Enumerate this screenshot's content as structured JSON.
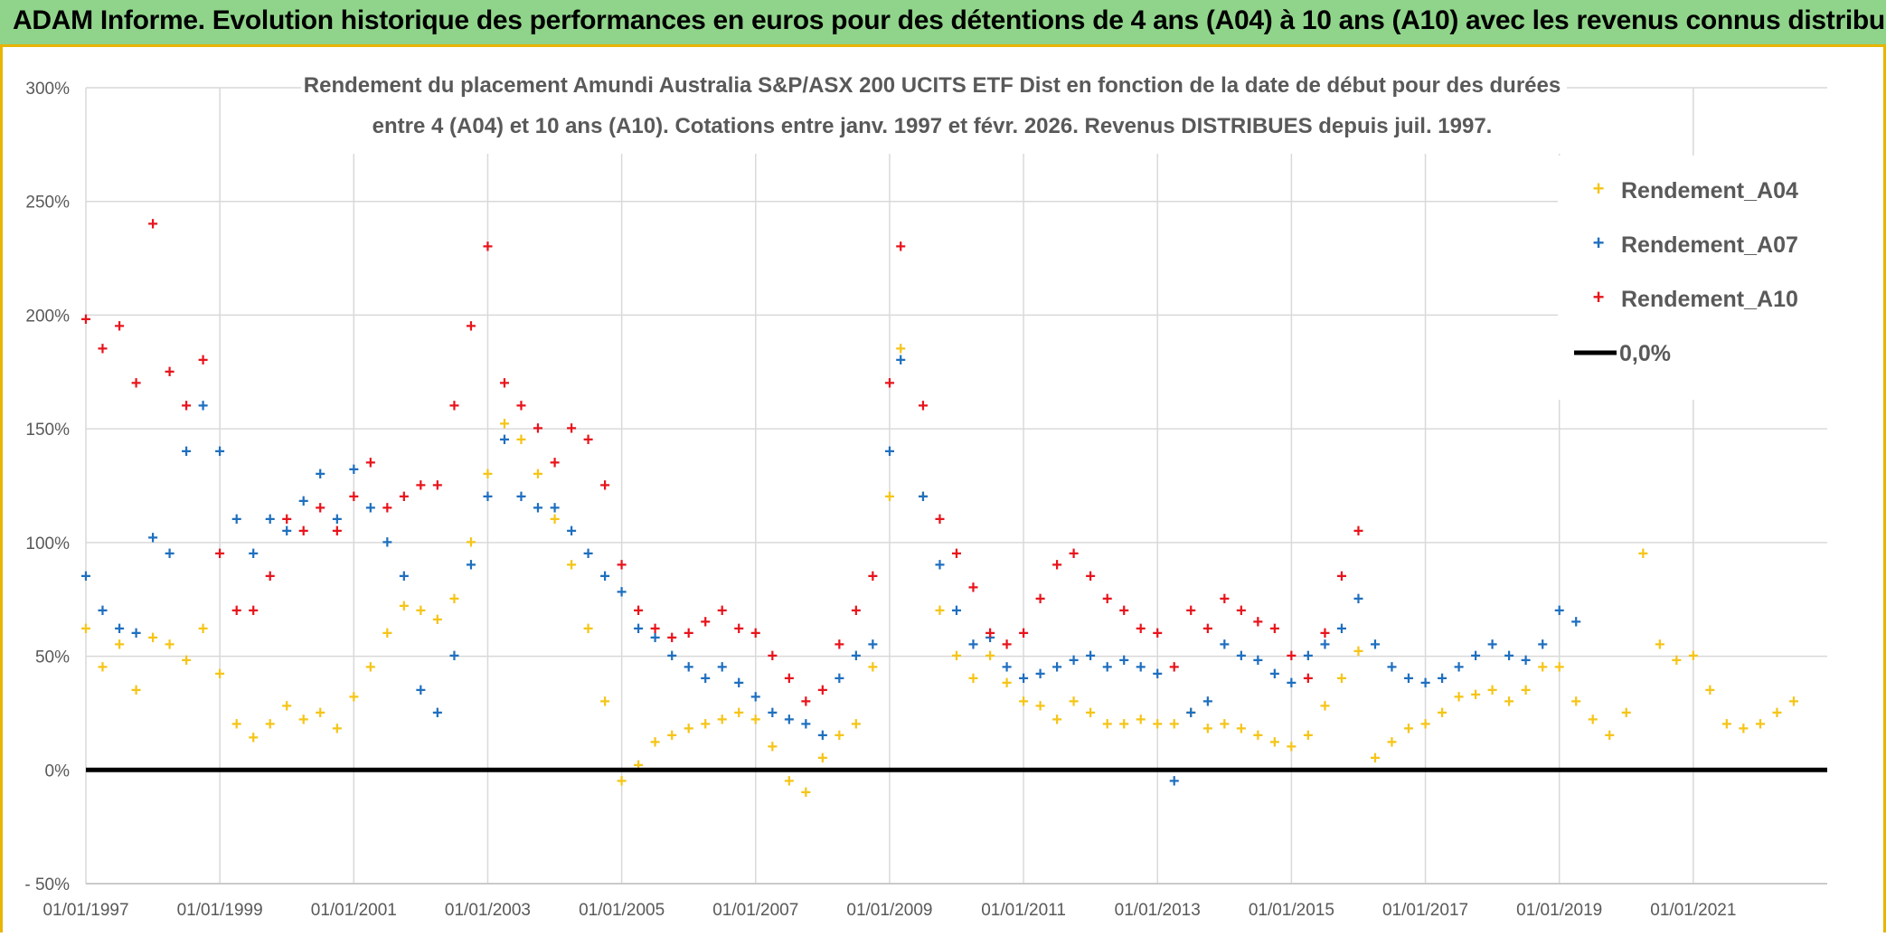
{
  "banner": {
    "text": "ADAM Informe. Evolution historique des performances en euros pour des détentions de 4 ans (A04) à 10 ans (A10) avec les revenus connus distribués"
  },
  "colors": {
    "banner_bg": "#8fd48a",
    "accent_border": "#e8b400",
    "A04": "#f5c518",
    "A07": "#1f6fbf",
    "A10": "#e8141c",
    "zero": "#000000"
  },
  "chart_data": {
    "type": "scatter",
    "title_line1": "Rendement du placement Amundi Australia S&P/ASX 200 UCITS ETF Dist en fonction de la date de début pour des durées",
    "title_line2": "entre 4 (A04) et 10 ans (A10). Cotations entre janv. 1997 et févr. 2026. Revenus DISTRIBUES depuis juil. 1997.",
    "xlim": [
      "1997-01-01",
      "2023-01-01"
    ],
    "ylim": [
      -0.5,
      3.0
    ],
    "grid": true,
    "legend_position": "top-right",
    "x_ticks": [
      "01/01/1997",
      "01/01/1999",
      "01/01/2001",
      "01/01/2003",
      "01/01/2005",
      "01/01/2007",
      "01/01/2009",
      "01/01/2011",
      "01/01/2013",
      "01/01/2015",
      "01/01/2017",
      "01/01/2019",
      "01/01/2021"
    ],
    "y_ticks": [
      {
        "value": -0.5,
        "label": "- 50%"
      },
      {
        "value": 0,
        "label": "0%"
      },
      {
        "value": 0.5,
        "label": "50%"
      },
      {
        "value": 1.0,
        "label": "100%"
      },
      {
        "value": 1.5,
        "label": "150%"
      },
      {
        "value": 2.0,
        "label": "200%"
      },
      {
        "value": 2.5,
        "label": "250%"
      },
      {
        "value": 3.0,
        "label": "300%"
      }
    ],
    "series": [
      {
        "name": "Rendement_A04",
        "marker": "+",
        "points": [
          [
            "1997-01",
            0.62
          ],
          [
            "1997-04",
            0.45
          ],
          [
            "1997-07",
            0.55
          ],
          [
            "1997-10",
            0.35
          ],
          [
            "1998-01",
            0.58
          ],
          [
            "1998-04",
            0.55
          ],
          [
            "1998-07",
            0.48
          ],
          [
            "1998-10",
            0.62
          ],
          [
            "1999-01",
            0.42
          ],
          [
            "1999-04",
            0.2
          ],
          [
            "1999-07",
            0.14
          ],
          [
            "1999-10",
            0.2
          ],
          [
            "2000-01",
            0.28
          ],
          [
            "2000-04",
            0.22
          ],
          [
            "2000-07",
            0.25
          ],
          [
            "2000-10",
            0.18
          ],
          [
            "2001-01",
            0.32
          ],
          [
            "2001-04",
            0.45
          ],
          [
            "2001-07",
            0.6
          ],
          [
            "2001-10",
            0.72
          ],
          [
            "2002-01",
            0.7
          ],
          [
            "2002-04",
            0.66
          ],
          [
            "2002-07",
            0.75
          ],
          [
            "2002-10",
            1.0
          ],
          [
            "2003-01",
            1.3
          ],
          [
            "2003-04",
            1.52
          ],
          [
            "2003-07",
            1.45
          ],
          [
            "2003-10",
            1.3
          ],
          [
            "2004-01",
            1.1
          ],
          [
            "2004-04",
            0.9
          ],
          [
            "2004-07",
            0.62
          ],
          [
            "2004-10",
            0.3
          ],
          [
            "2005-01",
            -0.05
          ],
          [
            "2005-04",
            0.02
          ],
          [
            "2005-07",
            0.12
          ],
          [
            "2005-10",
            0.15
          ],
          [
            "2006-01",
            0.18
          ],
          [
            "2006-04",
            0.2
          ],
          [
            "2006-07",
            0.22
          ],
          [
            "2006-10",
            0.25
          ],
          [
            "2007-01",
            0.22
          ],
          [
            "2007-04",
            0.1
          ],
          [
            "2007-07",
            -0.05
          ],
          [
            "2007-10",
            -0.1
          ],
          [
            "2008-01",
            0.05
          ],
          [
            "2008-04",
            0.15
          ],
          [
            "2008-07",
            0.2
          ],
          [
            "2008-10",
            0.45
          ],
          [
            "2009-01",
            1.2
          ],
          [
            "2009-03",
            1.85
          ],
          [
            "2009-07",
            1.2
          ],
          [
            "2009-10",
            0.7
          ],
          [
            "2010-01",
            0.5
          ],
          [
            "2010-04",
            0.4
          ],
          [
            "2010-07",
            0.5
          ],
          [
            "2010-10",
            0.38
          ],
          [
            "2011-01",
            0.3
          ],
          [
            "2011-04",
            0.28
          ],
          [
            "2011-07",
            0.22
          ],
          [
            "2011-10",
            0.3
          ],
          [
            "2012-01",
            0.25
          ],
          [
            "2012-04",
            0.2
          ],
          [
            "2012-07",
            0.2
          ],
          [
            "2012-10",
            0.22
          ],
          [
            "2013-01",
            0.2
          ],
          [
            "2013-04",
            0.2
          ],
          [
            "2013-07",
            0.25
          ],
          [
            "2013-10",
            0.18
          ],
          [
            "2014-01",
            0.2
          ],
          [
            "2014-04",
            0.18
          ],
          [
            "2014-07",
            0.15
          ],
          [
            "2014-10",
            0.12
          ],
          [
            "2015-01",
            0.1
          ],
          [
            "2015-04",
            0.15
          ],
          [
            "2015-07",
            0.28
          ],
          [
            "2015-10",
            0.4
          ],
          [
            "2016-01",
            0.52
          ],
          [
            "2016-04",
            0.05
          ],
          [
            "2016-07",
            0.12
          ],
          [
            "2016-10",
            0.18
          ],
          [
            "2017-01",
            0.2
          ],
          [
            "2017-04",
            0.25
          ],
          [
            "2017-07",
            0.32
          ],
          [
            "2017-10",
            0.33
          ],
          [
            "2018-01",
            0.35
          ],
          [
            "2018-04",
            0.3
          ],
          [
            "2018-07",
            0.35
          ],
          [
            "2018-10",
            0.45
          ],
          [
            "2019-01",
            0.45
          ],
          [
            "2019-04",
            0.3
          ],
          [
            "2019-07",
            0.22
          ],
          [
            "2019-10",
            0.15
          ],
          [
            "2020-01",
            0.25
          ],
          [
            "2020-04",
            0.95
          ],
          [
            "2020-07",
            0.55
          ],
          [
            "2020-10",
            0.48
          ],
          [
            "2021-01",
            0.5
          ],
          [
            "2021-04",
            0.35
          ],
          [
            "2021-07",
            0.2
          ],
          [
            "2021-10",
            0.18
          ],
          [
            "2022-01",
            0.2
          ],
          [
            "2022-04",
            0.25
          ],
          [
            "2022-07",
            0.3
          ]
        ]
      },
      {
        "name": "Rendement_A07",
        "marker": "+",
        "points": [
          [
            "1997-01",
            0.85
          ],
          [
            "1997-04",
            0.7
          ],
          [
            "1997-07",
            0.62
          ],
          [
            "1997-10",
            0.6
          ],
          [
            "1998-01",
            1.02
          ],
          [
            "1998-04",
            0.95
          ],
          [
            "1998-07",
            1.4
          ],
          [
            "1998-10",
            1.6
          ],
          [
            "1999-01",
            1.4
          ],
          [
            "1999-04",
            1.1
          ],
          [
            "1999-07",
            0.95
          ],
          [
            "1999-10",
            1.1
          ],
          [
            "2000-01",
            1.05
          ],
          [
            "2000-04",
            1.18
          ],
          [
            "2000-07",
            1.3
          ],
          [
            "2000-10",
            1.1
          ],
          [
            "2001-01",
            1.32
          ],
          [
            "2001-04",
            1.15
          ],
          [
            "2001-07",
            1.0
          ],
          [
            "2001-10",
            0.85
          ],
          [
            "2002-01",
            0.35
          ],
          [
            "2002-04",
            0.25
          ],
          [
            "2002-07",
            0.5
          ],
          [
            "2002-10",
            0.9
          ],
          [
            "2003-01",
            1.2
          ],
          [
            "2003-04",
            1.45
          ],
          [
            "2003-07",
            1.2
          ],
          [
            "2003-10",
            1.15
          ],
          [
            "2004-01",
            1.15
          ],
          [
            "2004-04",
            1.05
          ],
          [
            "2004-07",
            0.95
          ],
          [
            "2004-10",
            0.85
          ],
          [
            "2005-01",
            0.78
          ],
          [
            "2005-04",
            0.62
          ],
          [
            "2005-07",
            0.58
          ],
          [
            "2005-10",
            0.5
          ],
          [
            "2006-01",
            0.45
          ],
          [
            "2006-04",
            0.4
          ],
          [
            "2006-07",
            0.45
          ],
          [
            "2006-10",
            0.38
          ],
          [
            "2007-01",
            0.32
          ],
          [
            "2007-04",
            0.25
          ],
          [
            "2007-07",
            0.22
          ],
          [
            "2007-10",
            0.2
          ],
          [
            "2008-01",
            0.15
          ],
          [
            "2008-04",
            0.4
          ],
          [
            "2008-07",
            0.5
          ],
          [
            "2008-10",
            0.55
          ],
          [
            "2009-01",
            1.4
          ],
          [
            "2009-03",
            1.8
          ],
          [
            "2009-07",
            1.2
          ],
          [
            "2009-10",
            0.9
          ],
          [
            "2010-01",
            0.7
          ],
          [
            "2010-04",
            0.55
          ],
          [
            "2010-07",
            0.58
          ],
          [
            "2010-10",
            0.45
          ],
          [
            "2011-01",
            0.4
          ],
          [
            "2011-04",
            0.42
          ],
          [
            "2011-07",
            0.45
          ],
          [
            "2011-10",
            0.48
          ],
          [
            "2012-01",
            0.5
          ],
          [
            "2012-04",
            0.45
          ],
          [
            "2012-07",
            0.48
          ],
          [
            "2012-10",
            0.45
          ],
          [
            "2013-01",
            0.42
          ],
          [
            "2013-04",
            -0.05
          ],
          [
            "2013-07",
            0.25
          ],
          [
            "2013-10",
            0.3
          ],
          [
            "2014-01",
            0.55
          ],
          [
            "2014-04",
            0.5
          ],
          [
            "2014-07",
            0.48
          ],
          [
            "2014-10",
            0.42
          ],
          [
            "2015-01",
            0.38
          ],
          [
            "2015-04",
            0.5
          ],
          [
            "2015-07",
            0.55
          ],
          [
            "2015-10",
            0.62
          ],
          [
            "2016-01",
            0.75
          ],
          [
            "2016-04",
            0.55
          ],
          [
            "2016-07",
            0.45
          ],
          [
            "2016-10",
            0.4
          ],
          [
            "2017-01",
            0.38
          ],
          [
            "2017-04",
            0.4
          ],
          [
            "2017-07",
            0.45
          ],
          [
            "2017-10",
            0.5
          ],
          [
            "2018-01",
            0.55
          ],
          [
            "2018-04",
            0.5
          ],
          [
            "2018-07",
            0.48
          ],
          [
            "2018-10",
            0.55
          ],
          [
            "2019-01",
            0.7
          ],
          [
            "2019-04",
            0.65
          ]
        ]
      },
      {
        "name": "Rendement_A10",
        "marker": "+",
        "points": [
          [
            "1997-01",
            1.98
          ],
          [
            "1997-04",
            1.85
          ],
          [
            "1997-07",
            1.95
          ],
          [
            "1997-10",
            1.7
          ],
          [
            "1998-01",
            2.4
          ],
          [
            "1998-04",
            1.75
          ],
          [
            "1998-07",
            1.6
          ],
          [
            "1998-10",
            1.8
          ],
          [
            "1999-01",
            0.95
          ],
          [
            "1999-04",
            0.7
          ],
          [
            "1999-07",
            0.7
          ],
          [
            "1999-10",
            0.85
          ],
          [
            "2000-01",
            1.1
          ],
          [
            "2000-04",
            1.05
          ],
          [
            "2000-07",
            1.15
          ],
          [
            "2000-10",
            1.05
          ],
          [
            "2001-01",
            1.2
          ],
          [
            "2001-04",
            1.35
          ],
          [
            "2001-07",
            1.15
          ],
          [
            "2001-10",
            1.2
          ],
          [
            "2002-01",
            1.25
          ],
          [
            "2002-04",
            1.25
          ],
          [
            "2002-07",
            1.6
          ],
          [
            "2002-10",
            1.95
          ],
          [
            "2003-01",
            2.3
          ],
          [
            "2003-04",
            1.7
          ],
          [
            "2003-07",
            1.6
          ],
          [
            "2003-10",
            1.5
          ],
          [
            "2004-01",
            1.35
          ],
          [
            "2004-04",
            1.5
          ],
          [
            "2004-07",
            1.45
          ],
          [
            "2004-10",
            1.25
          ],
          [
            "2005-01",
            0.9
          ],
          [
            "2005-04",
            0.7
          ],
          [
            "2005-07",
            0.62
          ],
          [
            "2005-10",
            0.58
          ],
          [
            "2006-01",
            0.6
          ],
          [
            "2006-04",
            0.65
          ],
          [
            "2006-07",
            0.7
          ],
          [
            "2006-10",
            0.62
          ],
          [
            "2007-01",
            0.6
          ],
          [
            "2007-04",
            0.5
          ],
          [
            "2007-07",
            0.4
          ],
          [
            "2007-10",
            0.3
          ],
          [
            "2008-01",
            0.35
          ],
          [
            "2008-04",
            0.55
          ],
          [
            "2008-07",
            0.7
          ],
          [
            "2008-10",
            0.85
          ],
          [
            "2009-01",
            1.7
          ],
          [
            "2009-03",
            2.3
          ],
          [
            "2009-07",
            1.6
          ],
          [
            "2009-10",
            1.1
          ],
          [
            "2010-01",
            0.95
          ],
          [
            "2010-04",
            0.8
          ],
          [
            "2010-07",
            0.6
          ],
          [
            "2010-10",
            0.55
          ],
          [
            "2011-01",
            0.6
          ],
          [
            "2011-04",
            0.75
          ],
          [
            "2011-07",
            0.9
          ],
          [
            "2011-10",
            0.95
          ],
          [
            "2012-01",
            0.85
          ],
          [
            "2012-04",
            0.75
          ],
          [
            "2012-07",
            0.7
          ],
          [
            "2012-10",
            0.62
          ],
          [
            "2013-01",
            0.6
          ],
          [
            "2013-04",
            0.45
          ],
          [
            "2013-07",
            0.7
          ],
          [
            "2013-10",
            0.62
          ],
          [
            "2014-01",
            0.75
          ],
          [
            "2014-04",
            0.7
          ],
          [
            "2014-07",
            0.65
          ],
          [
            "2014-10",
            0.62
          ],
          [
            "2015-01",
            0.5
          ],
          [
            "2015-04",
            0.4
          ],
          [
            "2015-07",
            0.6
          ],
          [
            "2015-10",
            0.85
          ],
          [
            "2016-01",
            1.05
          ]
        ]
      }
    ],
    "zero_line": {
      "label": "0,0%",
      "value": 0
    },
    "legend": [
      "Rendement_A04",
      "Rendement_A07",
      "Rendement_A10",
      "0,0%"
    ]
  }
}
